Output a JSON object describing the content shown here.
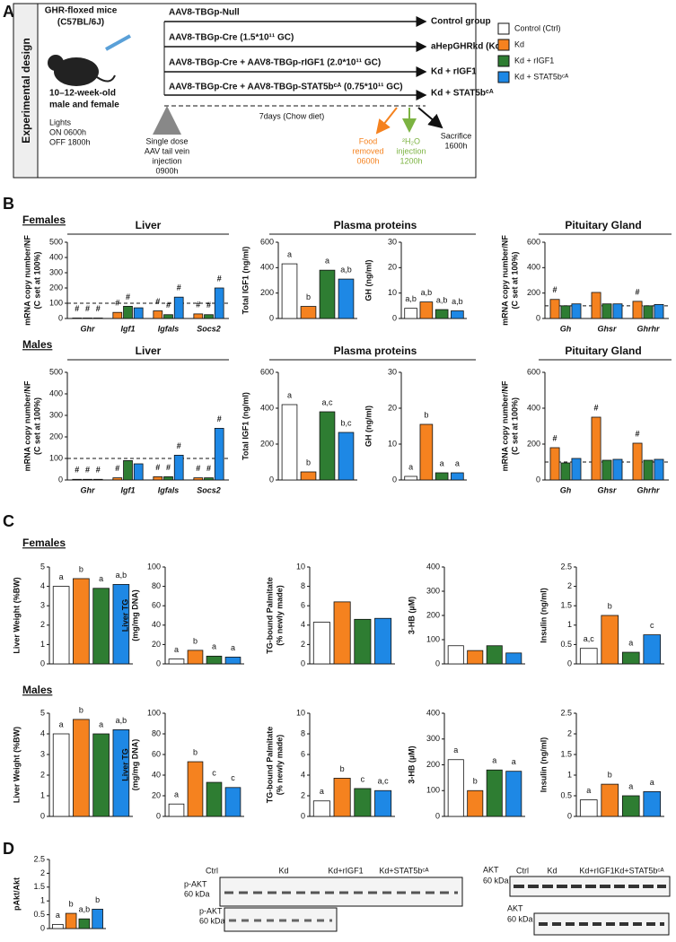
{
  "panel_labels": [
    "A",
    "B",
    "C",
    "D"
  ],
  "design": {
    "side_label": "Experimental design",
    "mouse": [
      "GHR-floxed mice",
      "(C57BL/6J)"
    ],
    "age": [
      "10–12-week-old",
      "male and female"
    ],
    "lights": [
      "Lights",
      "ON 0600h",
      "OFF 1800h"
    ],
    "treatments": [
      "AAV8-TBGp-Null",
      "AAV8-TBGp-Cre (1.5*10¹¹ GC)",
      "AAV8-TBGp-Cre  + AAV8-TBGp-rIGF1 (2.0*10¹¹ GC)",
      "AAV8-TBGp-Cre  + AAV8-TBGp-STAT5bᶜᴬ (0.75*10¹¹ GC)"
    ],
    "outcomes": [
      "Control group",
      "aHepGHRkd (Kd)",
      "Kd + rIGF1",
      "Kd + STAT5bᶜᴬ"
    ],
    "timeline": "7days (Chow diet)",
    "injection": [
      "Single dose",
      "AAV tail vein",
      "injection",
      "0900h"
    ],
    "food": [
      "Food",
      "removed",
      "0600h"
    ],
    "h2o": [
      "²H₂O",
      "injection",
      "1200h"
    ],
    "sacrifice": [
      "Sacrifice",
      "1600h"
    ]
  },
  "legend": [
    {
      "name": "Control (Ctrl)",
      "color": "#ffffff"
    },
    {
      "name": "Kd",
      "color": "#f5821f"
    },
    {
      "name": "Kd + rIGF1",
      "color": "#2e7d32"
    },
    {
      "name": "Kd + STAT5bᶜᴬ",
      "color": "#1e88e5"
    }
  ],
  "panel_b": {
    "rows": [
      {
        "label": "Females",
        "headers": [
          "Liver",
          "Plasma proteins",
          "Pituitary Gland"
        ]
      },
      {
        "label": "Males",
        "headers": [
          "Liver",
          "Plasma proteins",
          "Pituitary Gland"
        ]
      }
    ]
  },
  "panel_c": {
    "rows": [
      "Females",
      "Males"
    ]
  },
  "blots": {
    "lanes": [
      "Ctrl",
      "Kd",
      "Kd+rIGF1",
      "Kd+STAT5bᶜᴬ"
    ],
    "pakt": "p-AKT",
    "akt": "AKT",
    "size": "60 kDa"
  },
  "chart_data": [
    {
      "type": "bar",
      "ylabel": [
        "mRNA copy number/NF",
        "(C set at 100%)"
      ],
      "categories": [
        "Ghr",
        "Igf1",
        "Igfals",
        "Socs2"
      ],
      "ylim": [
        0,
        500
      ],
      "yticks": [
        0,
        100,
        200,
        300,
        400,
        500
      ],
      "reference_line": 100,
      "series": [
        {
          "color": "#f5821f",
          "values": [
            3,
            40,
            50,
            30
          ],
          "annotations": [
            "#",
            "#",
            "#",
            "#"
          ]
        },
        {
          "color": "#2e7d32",
          "values": [
            3,
            80,
            25,
            25
          ],
          "annotations": [
            "#",
            "#",
            "#",
            "#"
          ]
        },
        {
          "color": "#1e88e5",
          "values": [
            3,
            70,
            140,
            200
          ],
          "annotations": [
            "#",
            null,
            "#",
            "#"
          ]
        }
      ]
    },
    {
      "type": "bar",
      "ylabel": [
        "Total IGF1 (ng/ml)"
      ],
      "ylim": [
        0,
        600
      ],
      "yticks": [
        0,
        200,
        400,
        600
      ],
      "values": [
        430,
        95,
        380,
        310
      ],
      "colors": [
        "#ffffff",
        "#f5821f",
        "#2e7d32",
        "#1e88e5"
      ],
      "annotations": [
        "a",
        "b",
        "a",
        "a,b"
      ]
    },
    {
      "type": "bar",
      "ylabel": [
        "GH (ng/ml)"
      ],
      "ylim": [
        0,
        30
      ],
      "yticks": [
        0,
        10,
        20,
        30
      ],
      "values": [
        4,
        6.5,
        3.5,
        3
      ],
      "colors": [
        "#ffffff",
        "#f5821f",
        "#2e7d32",
        "#1e88e5"
      ],
      "annotations": [
        "a,b",
        "a,b",
        "a,b",
        "a,b"
      ]
    },
    {
      "type": "bar",
      "ylabel": [
        "mRNA copy number/NF",
        "(C set at 100%)"
      ],
      "categories": [
        "Gh",
        "Ghsr",
        "Ghrhr"
      ],
      "ylim": [
        0,
        600
      ],
      "yticks": [
        0,
        200,
        400,
        600
      ],
      "reference_line": 100,
      "series": [
        {
          "color": "#f5821f",
          "values": [
            150,
            205,
            135
          ],
          "annotations": [
            "#",
            null,
            "#"
          ]
        },
        {
          "color": "#2e7d32",
          "values": [
            100,
            115,
            100
          ]
        },
        {
          "color": "#1e88e5",
          "values": [
            115,
            115,
            110
          ]
        }
      ]
    },
    {
      "type": "bar",
      "ylabel": [
        "mRNA copy number/NF",
        "(C set at 100%)"
      ],
      "categories": [
        "Ghr",
        "Igf1",
        "Igfals",
        "Socs2"
      ],
      "ylim": [
        0,
        500
      ],
      "yticks": [
        0,
        100,
        200,
        300,
        400,
        500
      ],
      "reference_line": 100,
      "series": [
        {
          "color": "#f5821f",
          "values": [
            3,
            10,
            15,
            10
          ],
          "annotations": [
            "#",
            "#",
            "#",
            "#"
          ]
        },
        {
          "color": "#2e7d32",
          "values": [
            3,
            90,
            15,
            10
          ],
          "annotations": [
            "#",
            null,
            "#",
            "#"
          ]
        },
        {
          "color": "#1e88e5",
          "values": [
            3,
            75,
            115,
            240
          ],
          "annotations": [
            "#",
            null,
            "#",
            "#"
          ]
        }
      ]
    },
    {
      "type": "bar",
      "ylabel": [
        "Total IGF1 (ng/ml)"
      ],
      "ylim": [
        0,
        600
      ],
      "yticks": [
        0,
        200,
        400,
        600
      ],
      "values": [
        420,
        45,
        380,
        265
      ],
      "colors": [
        "#ffffff",
        "#f5821f",
        "#2e7d32",
        "#1e88e5"
      ],
      "annotations": [
        "a",
        "b",
        "a,c",
        "b,c"
      ]
    },
    {
      "type": "bar",
      "ylabel": [
        "GH (ng/ml)"
      ],
      "ylim": [
        0,
        30
      ],
      "yticks": [
        0,
        10,
        20,
        30
      ],
      "values": [
        1,
        15.5,
        2,
        2
      ],
      "colors": [
        "#ffffff",
        "#f5821f",
        "#2e7d32",
        "#1e88e5"
      ],
      "annotations": [
        "a",
        "b",
        "a",
        "a"
      ]
    },
    {
      "type": "bar",
      "ylabel": [
        "mRNA copy number/NF",
        "(C set at 100%)"
      ],
      "categories": [
        "Gh",
        "Ghsr",
        "Ghrhr"
      ],
      "ylim": [
        0,
        600
      ],
      "yticks": [
        0,
        200,
        400,
        600
      ],
      "reference_line": 100,
      "series": [
        {
          "color": "#f5821f",
          "values": [
            180,
            350,
            205
          ],
          "annotations": [
            "#",
            "#",
            "#"
          ]
        },
        {
          "color": "#2e7d32",
          "values": [
            95,
            110,
            110
          ]
        },
        {
          "color": "#1e88e5",
          "values": [
            120,
            115,
            115
          ]
        }
      ]
    },
    {
      "type": "bar",
      "ylabel": [
        "Liver Weight (%BW)"
      ],
      "ylim": [
        0,
        5
      ],
      "yticks": [
        0,
        1,
        2,
        3,
        4,
        5
      ],
      "values": [
        4.0,
        4.4,
        3.9,
        4.1
      ],
      "colors": [
        "#ffffff",
        "#f5821f",
        "#2e7d32",
        "#1e88e5"
      ],
      "annotations": [
        "a",
        "b",
        "a",
        "a,b"
      ]
    },
    {
      "type": "bar",
      "ylabel": [
        "Liver TG",
        "(mg/mg DNA)"
      ],
      "ylim": [
        0,
        100
      ],
      "yticks": [
        0,
        20,
        40,
        60,
        80,
        100
      ],
      "values": [
        5,
        14,
        8,
        7
      ],
      "colors": [
        "#ffffff",
        "#f5821f",
        "#2e7d32",
        "#1e88e5"
      ],
      "annotations": [
        "a",
        "b",
        "a",
        "a"
      ]
    },
    {
      "type": "bar",
      "ylabel": [
        "TG-bound Palmitate",
        "(% newly made)"
      ],
      "ylim": [
        0,
        10
      ],
      "yticks": [
        0,
        2,
        4,
        6,
        8,
        10
      ],
      "values": [
        4.3,
        6.4,
        4.6,
        4.7
      ],
      "colors": [
        "#ffffff",
        "#f5821f",
        "#2e7d32",
        "#1e88e5"
      ]
    },
    {
      "type": "bar",
      "ylabel": [
        "3-HB (µM)"
      ],
      "ylim": [
        0,
        400
      ],
      "yticks": [
        0,
        100,
        200,
        300,
        400
      ],
      "values": [
        75,
        55,
        75,
        45
      ],
      "colors": [
        "#ffffff",
        "#f5821f",
        "#2e7d32",
        "#1e88e5"
      ]
    },
    {
      "type": "bar",
      "ylabel": [
        "Insulin (ng/ml)"
      ],
      "ylim": [
        0,
        2.5
      ],
      "yticks": [
        0,
        0.5,
        1,
        1.5,
        2,
        2.5
      ],
      "values": [
        0.4,
        1.25,
        0.3,
        0.75
      ],
      "colors": [
        "#ffffff",
        "#f5821f",
        "#2e7d32",
        "#1e88e5"
      ],
      "annotations": [
        "a,c",
        "b",
        "a",
        "c"
      ]
    },
    {
      "type": "bar",
      "ylabel": [
        "Liver Weight (%BW)"
      ],
      "ylim": [
        0,
        5
      ],
      "yticks": [
        0,
        1,
        2,
        3,
        4,
        5
      ],
      "values": [
        4.0,
        4.7,
        4.0,
        4.2
      ],
      "colors": [
        "#ffffff",
        "#f5821f",
        "#2e7d32",
        "#1e88e5"
      ],
      "annotations": [
        "a",
        "b",
        "a",
        "a,b"
      ]
    },
    {
      "type": "bar",
      "ylabel": [
        "Liver TG",
        "(mg/mg DNA)"
      ],
      "ylim": [
        0,
        100
      ],
      "yticks": [
        0,
        20,
        40,
        60,
        80,
        100
      ],
      "values": [
        12,
        53,
        33,
        28
      ],
      "colors": [
        "#ffffff",
        "#f5821f",
        "#2e7d32",
        "#1e88e5"
      ],
      "annotations": [
        "a",
        "b",
        "c",
        "c"
      ]
    },
    {
      "type": "bar",
      "ylabel": [
        "TG-bound Palmitate",
        "(% newly made)"
      ],
      "ylim": [
        0,
        10
      ],
      "yticks": [
        0,
        2,
        4,
        6,
        8,
        10
      ],
      "values": [
        1.5,
        3.7,
        2.7,
        2.5
      ],
      "colors": [
        "#ffffff",
        "#f5821f",
        "#2e7d32",
        "#1e88e5"
      ],
      "annotations": [
        "a",
        "b",
        "c",
        "a,c"
      ]
    },
    {
      "type": "bar",
      "ylabel": [
        "3-HB (µM)"
      ],
      "ylim": [
        0,
        400
      ],
      "yticks": [
        0,
        100,
        200,
        300,
        400
      ],
      "values": [
        220,
        100,
        180,
        175
      ],
      "colors": [
        "#ffffff",
        "#f5821f",
        "#2e7d32",
        "#1e88e5"
      ],
      "annotations": [
        "a",
        "b",
        "a",
        "a"
      ]
    },
    {
      "type": "bar",
      "ylabel": [
        "Insulin (ng/ml)"
      ],
      "ylim": [
        0,
        2.5
      ],
      "yticks": [
        0,
        0.5,
        1,
        1.5,
        2,
        2.5
      ],
      "values": [
        0.4,
        0.78,
        0.5,
        0.6
      ],
      "colors": [
        "#ffffff",
        "#f5821f",
        "#2e7d32",
        "#1e88e5"
      ],
      "annotations": [
        "a",
        "b",
        "a",
        "a"
      ]
    },
    {
      "type": "bar",
      "ylabel": [
        "pAkt/Akt"
      ],
      "ylim": [
        0,
        2.5
      ],
      "yticks": [
        0,
        0.5,
        1,
        1.5,
        2,
        2.5
      ],
      "values": [
        0.15,
        0.55,
        0.35,
        0.7
      ],
      "colors": [
        "#ffffff",
        "#f5821f",
        "#2e7d32",
        "#1e88e5"
      ],
      "annotations": [
        "a",
        "b",
        "a,b",
        "b"
      ]
    }
  ]
}
